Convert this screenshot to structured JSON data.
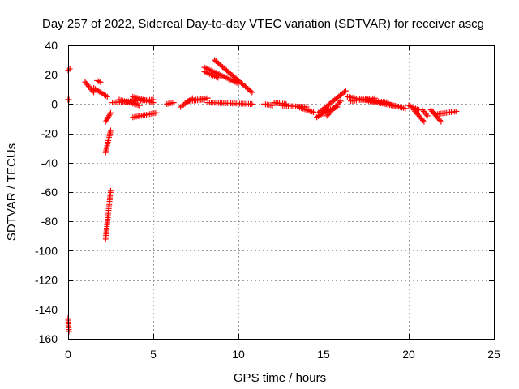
{
  "chart_data": {
    "type": "scatter",
    "title": "Day 257 of 2022, Sidereal Day-to-day VTEC variation (SDTVAR) for receiver ascg",
    "xlabel": "GPS time / hours",
    "ylabel": "SDTVAR / TECUs",
    "xlim": [
      0,
      25
    ],
    "ylim": [
      -160,
      40
    ],
    "xticks": [
      0,
      5,
      10,
      15,
      20,
      25
    ],
    "yticks": [
      -160,
      -140,
      -120,
      -100,
      -80,
      -60,
      -40,
      -20,
      0,
      20,
      40
    ],
    "xtick_labels": [
      "0",
      "5",
      "10",
      "15",
      "20",
      "25"
    ],
    "ytick_labels": [
      "-160",
      "-140",
      "-120",
      "-100",
      "-80",
      "-60",
      "-40",
      "-20",
      "0",
      "20",
      "40"
    ],
    "grid": true,
    "marker": "+",
    "marker_color": "#ff0000",
    "series": [
      {
        "name": "SDTVAR",
        "segments": [
          {
            "x0": 0.0,
            "y0": 23,
            "x1": 0.1,
            "y1": 24
          },
          {
            "x0": 0.0,
            "y0": 3,
            "x1": 0.05,
            "y1": 3
          },
          {
            "x0": 0.0,
            "y0": -146,
            "x1": 0.05,
            "y1": -155
          },
          {
            "x0": 1.0,
            "y0": 15,
            "x1": 1.5,
            "y1": 8
          },
          {
            "x0": 1.5,
            "y0": 11,
            "x1": 2.3,
            "y1": 5
          },
          {
            "x0": 1.7,
            "y0": 16,
            "x1": 1.9,
            "y1": 15
          },
          {
            "x0": 2.2,
            "y0": -12,
            "x1": 2.5,
            "y1": -6
          },
          {
            "x0": 2.2,
            "y0": -33,
            "x1": 2.5,
            "y1": -18
          },
          {
            "x0": 2.2,
            "y0": -92,
            "x1": 2.5,
            "y1": -59
          },
          {
            "x0": 2.6,
            "y0": 1,
            "x1": 5.0,
            "y1": 3
          },
          {
            "x0": 3.0,
            "y0": 3,
            "x1": 4.2,
            "y1": -1
          },
          {
            "x0": 3.8,
            "y0": 5,
            "x1": 5.0,
            "y1": 1
          },
          {
            "x0": 3.8,
            "y0": -9,
            "x1": 5.2,
            "y1": -6
          },
          {
            "x0": 5.8,
            "y0": 0,
            "x1": 6.2,
            "y1": 1
          },
          {
            "x0": 6.6,
            "y0": -2,
            "x1": 7.3,
            "y1": 4
          },
          {
            "x0": 7.0,
            "y0": 2,
            "x1": 8.0,
            "y1": 3
          },
          {
            "x0": 7.5,
            "y0": 3,
            "x1": 8.2,
            "y1": 4
          },
          {
            "x0": 8.0,
            "y0": 25,
            "x1": 10.0,
            "y1": 14
          },
          {
            "x0": 8.6,
            "y0": 30,
            "x1": 10.8,
            "y1": 8
          },
          {
            "x0": 8.0,
            "y0": 22,
            "x1": 8.8,
            "y1": 18
          },
          {
            "x0": 8.2,
            "y0": 1,
            "x1": 10.8,
            "y1": 0
          },
          {
            "x0": 11.5,
            "y0": 0,
            "x1": 12.0,
            "y1": -1
          },
          {
            "x0": 12.1,
            "y0": 1,
            "x1": 12.8,
            "y1": 0
          },
          {
            "x0": 12.5,
            "y0": -1,
            "x1": 14.0,
            "y1": -2
          },
          {
            "x0": 13.5,
            "y0": -2,
            "x1": 14.5,
            "y1": -6
          },
          {
            "x0": 14.6,
            "y0": -9,
            "x1": 15.3,
            "y1": -4
          },
          {
            "x0": 14.7,
            "y0": -6,
            "x1": 16.3,
            "y1": 9
          },
          {
            "x0": 15.0,
            "y0": -5,
            "x1": 15.8,
            "y1": -2
          },
          {
            "x0": 15.2,
            "y0": -8,
            "x1": 16.0,
            "y1": 2
          },
          {
            "x0": 16.4,
            "y0": 5,
            "x1": 19.5,
            "y1": -2
          },
          {
            "x0": 16.6,
            "y0": 2,
            "x1": 18.0,
            "y1": 4
          },
          {
            "x0": 17.5,
            "y0": 3,
            "x1": 18.8,
            "y1": 1
          },
          {
            "x0": 18.5,
            "y0": 1,
            "x1": 19.8,
            "y1": -3
          },
          {
            "x0": 20.0,
            "y0": -1,
            "x1": 20.6,
            "y1": -4
          },
          {
            "x0": 20.3,
            "y0": -4,
            "x1": 20.9,
            "y1": -12
          },
          {
            "x0": 20.8,
            "y0": -4,
            "x1": 21.1,
            "y1": -8
          },
          {
            "x0": 21.3,
            "y0": -4,
            "x1": 21.9,
            "y1": -12
          },
          {
            "x0": 21.6,
            "y0": -7,
            "x1": 22.8,
            "y1": -5
          }
        ]
      }
    ]
  }
}
